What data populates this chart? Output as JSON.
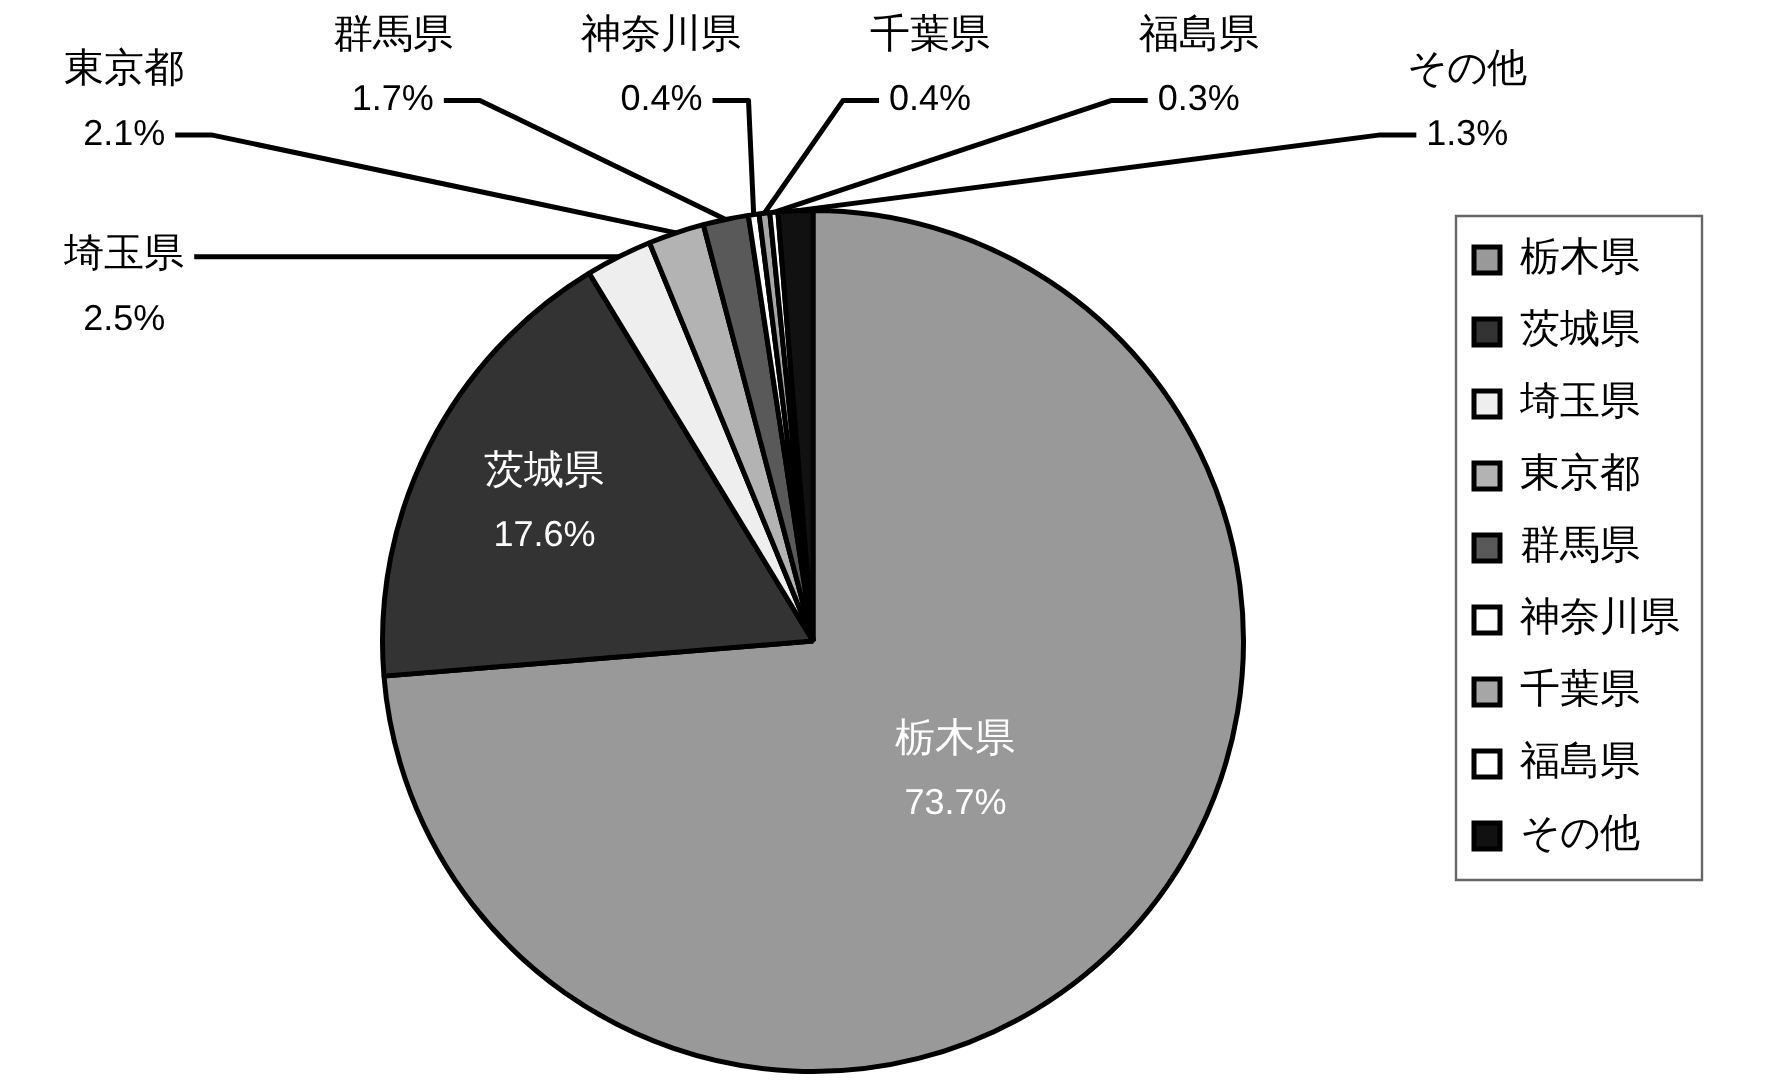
{
  "chart_data": {
    "type": "pie",
    "categories": [
      "栃木県",
      "茨城県",
      "埼玉県",
      "東京都",
      "群馬県",
      "神奈川県",
      "千葉県",
      "福島県",
      "その他"
    ],
    "values": [
      73.7,
      17.6,
      2.5,
      2.1,
      1.7,
      0.4,
      0.4,
      0.3,
      1.3
    ],
    "colors": [
      "#999999",
      "#333333",
      "#eeeeee",
      "#b3b3b3",
      "#595959",
      "#ffffff",
      "#a6a6a6",
      "#ffffff",
      "#111111"
    ],
    "value_labels": [
      "73.7%",
      "17.6%",
      "2.5%",
      "2.1%",
      "1.7%",
      "0.4%",
      "0.4%",
      "0.3%",
      "1.3%"
    ],
    "legend": "right"
  }
}
